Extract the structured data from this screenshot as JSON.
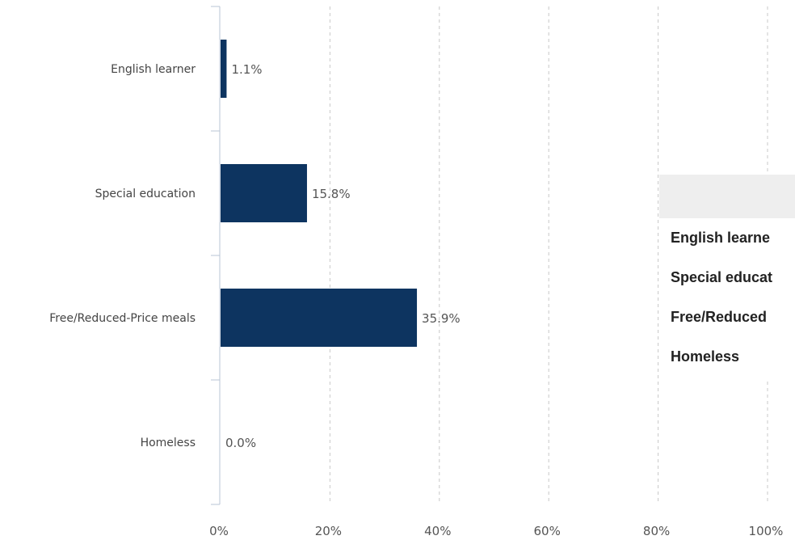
{
  "chart_data": {
    "type": "bar",
    "orientation": "horizontal",
    "categories": [
      "English learner",
      "Special education",
      "Free/Reduced-Price meals",
      "Homeless"
    ],
    "values": [
      1.1,
      15.8,
      35.9,
      0.0
    ],
    "value_labels": [
      "1.1%",
      "15.8%",
      "35.9%",
      "0.0%"
    ],
    "x_ticks": [
      "0%",
      "20%",
      "40%",
      "60%",
      "80%",
      "100%"
    ],
    "xlim": [
      0,
      100
    ],
    "grid": "vertical dashed",
    "bar_color": "#0d3460"
  },
  "tooltip": {
    "rows": [
      "English learne",
      "Special educat",
      "Free/Reduced",
      "Homeless"
    ]
  }
}
